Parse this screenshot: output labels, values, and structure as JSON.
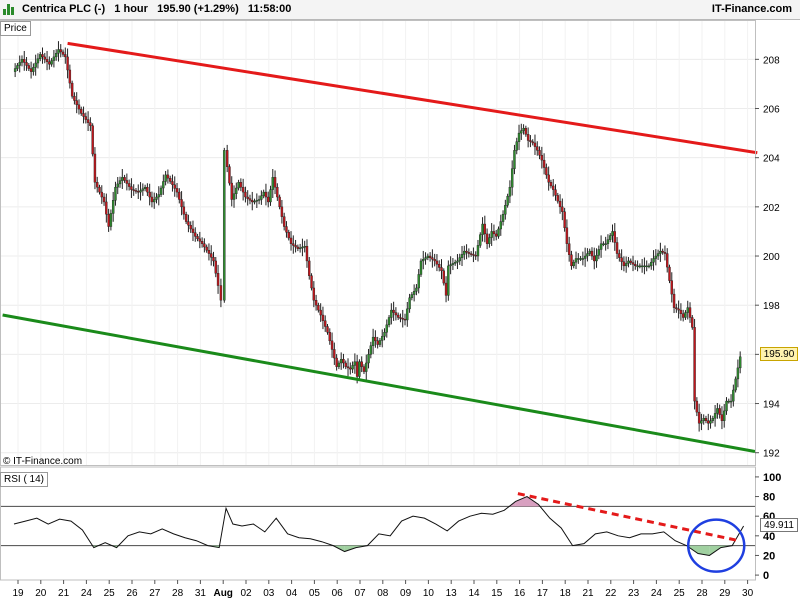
{
  "header": {
    "instrument": "Centrica PLC (-)",
    "timeframe": "1 hour",
    "last_price": "195.90 (+1.29%)",
    "time": "11:58:00",
    "brand": "IT-Finance.com"
  },
  "price_panel": {
    "label": "Price",
    "copyright": "© IT-Finance.com",
    "current_value_tag": "195.90"
  },
  "rsi_panel": {
    "label": "RSI ( 14)",
    "current_value_tag": "49.911"
  },
  "colors": {
    "resistance": "#e41a1a",
    "support": "#1a8a1a",
    "up_candle": "#2e8b2e",
    "down_candle": "#c0161c",
    "rsi_fill_high": "#d8a0c0",
    "rsi_fill_low": "#a0d0a0",
    "annotation_circle": "#1f3fe0"
  },
  "chart_data": [
    {
      "type": "candlestick",
      "ylim": [
        191.5,
        209.6
      ],
      "y_ticks": [
        192,
        194,
        196,
        198,
        200,
        202,
        204,
        206,
        208
      ],
      "x_ticks": [
        "19",
        "20",
        "21",
        "24",
        "25",
        "26",
        "27",
        "28",
        "31",
        "Aug",
        "02",
        "03",
        "04",
        "05",
        "06",
        "07",
        "08",
        "09",
        "10",
        "13",
        "14",
        "15",
        "16",
        "17",
        "18",
        "21",
        "22",
        "23",
        "24",
        "25",
        "28",
        "29",
        "30"
      ],
      "close_path": [
        [
          0,
          207.5
        ],
        [
          0.4,
          208
        ],
        [
          0.8,
          207.5
        ],
        [
          1.2,
          208.2
        ],
        [
          1.6,
          207.8
        ],
        [
          2.0,
          208.4
        ],
        [
          2.3,
          208.1
        ],
        [
          2.6,
          206.5
        ],
        [
          3.0,
          205.8
        ],
        [
          3.4,
          205.3
        ],
        [
          3.6,
          203
        ],
        [
          4.0,
          202.2
        ],
        [
          4.2,
          201.2
        ],
        [
          4.5,
          202.8
        ],
        [
          4.8,
          203.2
        ],
        [
          5.2,
          202.7
        ],
        [
          5.5,
          202.6
        ],
        [
          5.8,
          202.8
        ],
        [
          6.1,
          202.2
        ],
        [
          6.4,
          202.5
        ],
        [
          6.7,
          203.3
        ],
        [
          7.0,
          202.9
        ],
        [
          7.2,
          202.6
        ],
        [
          7.6,
          201.4
        ],
        [
          8.0,
          200.8
        ],
        [
          8.3,
          200.5
        ],
        [
          8.6,
          200.1
        ],
        [
          8.8,
          199.8
        ],
        [
          9.0,
          198.8
        ],
        [
          9.15,
          198.2
        ],
        [
          9.3,
          204.3
        ],
        [
          9.6,
          202.3
        ],
        [
          9.9,
          203
        ],
        [
          10.2,
          202.4
        ],
        [
          10.5,
          202.2
        ],
        [
          10.8,
          202.3
        ],
        [
          11.0,
          202.6
        ],
        [
          11.2,
          202.2
        ],
        [
          11.4,
          203.2
        ],
        [
          11.6,
          202.4
        ],
        [
          11.9,
          201.2
        ],
        [
          12.2,
          200.5
        ],
        [
          12.5,
          200.3
        ],
        [
          12.8,
          200.4
        ],
        [
          13.0,
          199.2
        ],
        [
          13.2,
          198.2
        ],
        [
          13.5,
          197.6
        ],
        [
          13.8,
          196.9
        ],
        [
          14.0,
          196.2
        ],
        [
          14.2,
          195.5
        ],
        [
          14.4,
          195.8
        ],
        [
          14.6,
          195.5
        ],
        [
          14.8,
          195.4
        ],
        [
          15.0,
          195.7
        ],
        [
          15.1,
          195.1
        ],
        [
          15.2,
          195.7
        ],
        [
          15.4,
          195.3
        ],
        [
          15.6,
          196.0
        ],
        [
          15.8,
          196.7
        ],
        [
          16.0,
          196.4
        ],
        [
          16.3,
          196.9
        ],
        [
          16.6,
          197.8
        ],
        [
          16.9,
          197.5
        ],
        [
          17.2,
          197.4
        ],
        [
          17.4,
          198.3
        ],
        [
          17.7,
          198.7
        ],
        [
          17.9,
          199.8
        ],
        [
          18.2,
          200.0
        ],
        [
          18.5,
          199.8
        ],
        [
          18.8,
          199.4
        ],
        [
          19.0,
          198.4
        ],
        [
          19.1,
          199.6
        ],
        [
          19.5,
          199.8
        ],
        [
          19.8,
          200.2
        ],
        [
          20.0,
          200.1
        ],
        [
          20.3,
          200.0
        ],
        [
          20.6,
          201.3
        ],
        [
          20.8,
          200.5
        ],
        [
          21.0,
          201.0
        ],
        [
          21.2,
          200.8
        ],
        [
          21.5,
          201.7
        ],
        [
          21.8,
          202.8
        ],
        [
          22.0,
          204.3
        ],
        [
          22.2,
          205.0
        ],
        [
          22.4,
          205.2
        ],
        [
          22.6,
          204.7
        ],
        [
          22.8,
          204.6
        ],
        [
          23.0,
          204.3
        ],
        [
          23.2,
          203.9
        ],
        [
          23.5,
          203.0
        ],
        [
          23.7,
          202.7
        ],
        [
          24.0,
          202.0
        ],
        [
          24.1,
          201.8
        ],
        [
          24.3,
          200.5
        ],
        [
          24.5,
          199.6
        ],
        [
          24.7,
          199.9
        ],
        [
          25.0,
          199.9
        ],
        [
          25.3,
          200.2
        ],
        [
          25.5,
          199.8
        ],
        [
          25.8,
          200.5
        ],
        [
          26.0,
          200.5
        ],
        [
          26.3,
          201.0
        ],
        [
          26.5,
          200.1
        ],
        [
          26.8,
          199.6
        ],
        [
          27.0,
          199.8
        ],
        [
          27.3,
          199.6
        ],
        [
          27.6,
          199.6
        ],
        [
          27.9,
          199.6
        ],
        [
          28.1,
          199.9
        ],
        [
          28.4,
          200.2
        ],
        [
          28.6,
          200.1
        ],
        [
          28.8,
          199.0
        ],
        [
          29.0,
          197.9
        ],
        [
          29.2,
          197.8
        ],
        [
          29.4,
          197.5
        ],
        [
          29.6,
          197.9
        ],
        [
          29.8,
          197.1
        ],
        [
          29.9,
          194.1
        ],
        [
          30.1,
          193.2
        ],
        [
          30.3,
          193.4
        ],
        [
          30.5,
          193.2
        ],
        [
          30.7,
          193.4
        ],
        [
          30.9,
          193.8
        ],
        [
          31.1,
          193.3
        ],
        [
          31.3,
          194.1
        ],
        [
          31.5,
          194.1
        ],
        [
          31.7,
          195.0
        ],
        [
          31.9,
          195.9
        ]
      ],
      "trendlines": [
        {
          "color": "resistance",
          "from": [
            2.35,
            208.65
          ],
          "to": [
            32.6,
            204.2
          ]
        },
        {
          "color": "support",
          "from": [
            -0.5,
            197.6
          ],
          "to": [
            32.5,
            192.05
          ]
        }
      ],
      "last_value": 195.9
    },
    {
      "type": "line",
      "indicator": "RSI",
      "ylim": [
        -5,
        105
      ],
      "y_ticks": [
        0,
        20,
        40,
        60,
        80,
        100
      ],
      "bands": [
        30,
        70
      ],
      "points": [
        [
          0,
          52
        ],
        [
          0.5,
          55
        ],
        [
          1,
          58
        ],
        [
          1.5,
          52
        ],
        [
          2,
          57
        ],
        [
          2.5,
          55
        ],
        [
          3,
          46
        ],
        [
          3.5,
          28
        ],
        [
          4,
          33
        ],
        [
          4.5,
          28
        ],
        [
          5,
          40
        ],
        [
          5.5,
          44
        ],
        [
          6,
          42
        ],
        [
          6.5,
          47
        ],
        [
          7,
          42
        ],
        [
          7.5,
          38
        ],
        [
          8,
          35
        ],
        [
          8.5,
          30
        ],
        [
          9,
          28
        ],
        [
          9.3,
          68
        ],
        [
          9.6,
          52
        ],
        [
          10,
          50
        ],
        [
          10.5,
          52
        ],
        [
          11,
          44
        ],
        [
          11.5,
          58
        ],
        [
          12,
          42
        ],
        [
          12.5,
          38
        ],
        [
          13,
          37
        ],
        [
          13.5,
          34
        ],
        [
          14,
          30
        ],
        [
          14.5,
          24
        ],
        [
          15,
          28
        ],
        [
          15.5,
          30
        ],
        [
          16,
          42
        ],
        [
          16.5,
          40
        ],
        [
          17,
          55
        ],
        [
          17.5,
          60
        ],
        [
          18,
          58
        ],
        [
          18.5,
          52
        ],
        [
          19,
          45
        ],
        [
          19.5,
          55
        ],
        [
          20,
          60
        ],
        [
          20.5,
          63
        ],
        [
          21,
          62
        ],
        [
          21.5,
          66
        ],
        [
          22,
          75
        ],
        [
          22.5,
          80
        ],
        [
          23,
          72
        ],
        [
          23.5,
          58
        ],
        [
          24,
          48
        ],
        [
          24.5,
          30
        ],
        [
          25,
          32
        ],
        [
          25.5,
          42
        ],
        [
          26,
          44
        ],
        [
          26.5,
          40
        ],
        [
          27,
          38
        ],
        [
          27.5,
          42
        ],
        [
          28,
          42
        ],
        [
          28.5,
          44
        ],
        [
          29,
          35
        ],
        [
          29.5,
          30
        ],
        [
          30,
          22
        ],
        [
          30.5,
          20
        ],
        [
          31,
          28
        ],
        [
          31.5,
          30
        ],
        [
          32,
          50
        ]
      ],
      "annotation_line": {
        "from": [
          22.1,
          83
        ],
        "to": [
          31.8,
          35
        ]
      },
      "last_value": 49.911
    }
  ]
}
